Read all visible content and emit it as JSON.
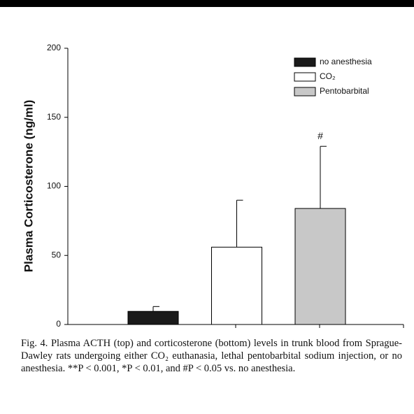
{
  "chart_data": {
    "type": "bar",
    "ylabel": "Plasma Corticosterone (ng/ml)",
    "categories": [
      null
    ],
    "series": [
      {
        "name": "no anesthesia",
        "color": "#1a1a1a",
        "values": [
          9.5
        ],
        "errors": [
          3.5
        ]
      },
      {
        "name": "CO₂",
        "color": "#ffffff",
        "values": [
          56
        ],
        "errors": [
          34
        ]
      },
      {
        "name": "Pentobarbital",
        "color": "#c8c8c8",
        "values": [
          84
        ],
        "errors": [
          45
        ]
      }
    ],
    "annotations": [
      {
        "text": "#",
        "series": 2
      }
    ],
    "ylim": [
      0,
      200
    ],
    "yticks": [
      0,
      50,
      100,
      150,
      200
    ],
    "legend": "upper right"
  },
  "caption": "Fig. 4. Plasma ACTH (top) and corticosterone (bottom) levels in trunk blood from Sprague-Dawley rats undergoing either CO₂ euthanasia, lethal pentobarbital sodium injection, or no anesthesia. **P < 0.001, *P < 0.01, and #P < 0.05 vs. no anesthesia."
}
